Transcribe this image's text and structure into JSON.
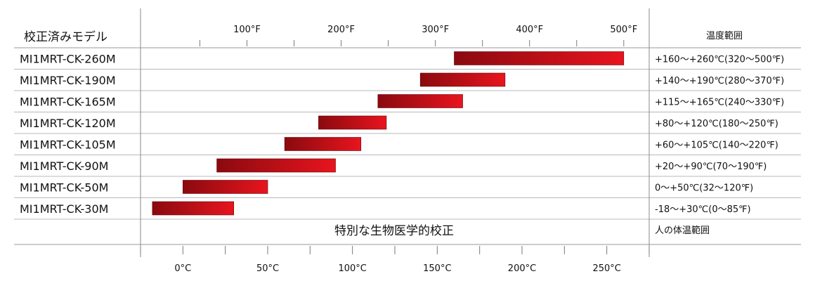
{
  "chart_data": {
    "type": "bar",
    "subtype": "floating-range",
    "header_left": "校正済みモデル",
    "header_right": "温度範囲",
    "footer_left": "",
    "footer_center": "特別な生物医学的校正",
    "footer_right": "人の体温範囲",
    "x_axis_celsius": {
      "unit": "°C",
      "range": [
        -25,
        275
      ],
      "ticks": [
        0,
        50,
        100,
        150,
        200,
        250
      ],
      "tick_labels": [
        "0°C",
        "50°C",
        "100°C",
        "150°C",
        "200°C",
        "250°C"
      ]
    },
    "x_axis_fahrenheit": {
      "unit": "°F",
      "ticks": [
        100,
        200,
        300,
        400,
        500
      ],
      "tick_labels": [
        "100°F",
        "200°F",
        "300°F",
        "400°F",
        "500°F"
      ]
    },
    "bar_color_start": "#8a0a0f",
    "bar_color_end": "#e8141e",
    "categories": [
      "MI1MRT-CK-260M",
      "MI1MRT-CK-190M",
      "MI1MRT-CK-165M",
      "MI1MRT-CK-120M",
      "MI1MRT-CK-105M",
      "MI1MRT-CK-90M",
      "MI1MRT-CK-50M",
      "MI1MRT-CK-30M"
    ],
    "ranges_celsius": [
      [
        160,
        260
      ],
      [
        140,
        190
      ],
      [
        115,
        165
      ],
      [
        80,
        120
      ],
      [
        60,
        105
      ],
      [
        20,
        90
      ],
      [
        0,
        50
      ],
      [
        -18,
        30
      ]
    ],
    "range_labels": [
      "+160～+260℃(320～500℉)",
      "+140～+190℃(280～370℉)",
      "+115～+165℃(240～330℉)",
      "+80～+120℃(180～250℉)",
      "+60～+105℃(140～220℉)",
      "+20～+90℃(70～190℉)",
      "0～+50℃(32～120℉)",
      "-18～+30℃(0～85℉)"
    ]
  }
}
